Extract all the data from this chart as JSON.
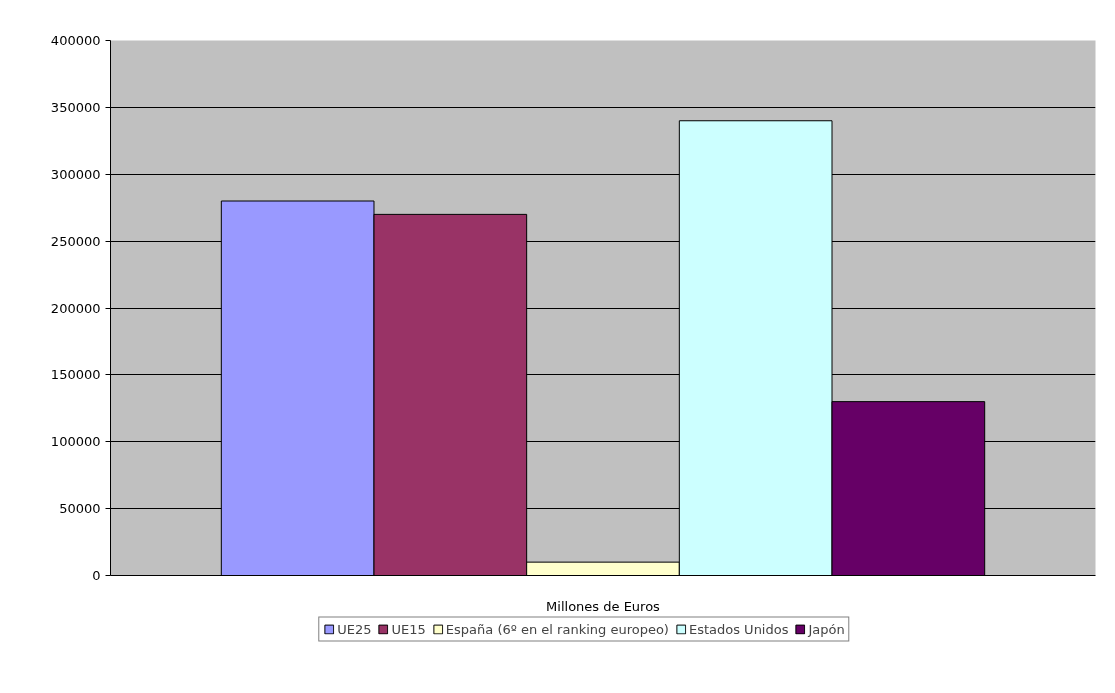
{
  "chart_data": {
    "type": "bar",
    "categories": [
      "Millones de Euros"
    ],
    "series": [
      {
        "name": "UE25",
        "color": "#9999ff",
        "values": [
          280000
        ]
      },
      {
        "name": "UE15",
        "color": "#993366",
        "values": [
          270000
        ]
      },
      {
        "name": "España (6º en el ranking europeo)",
        "color": "#ffffcc",
        "values": [
          10000
        ]
      },
      {
        "name": "Estados Unidos",
        "color": "#ccffff",
        "values": [
          340000
        ]
      },
      {
        "name": "Japón",
        "color": "#660066",
        "values": [
          130000
        ]
      }
    ],
    "ylim": [
      0,
      400000
    ],
    "yticks": [
      0,
      50000,
      100000,
      150000,
      200000,
      250000,
      300000,
      350000,
      400000
    ],
    "grid": "y",
    "legend": "bottom"
  }
}
